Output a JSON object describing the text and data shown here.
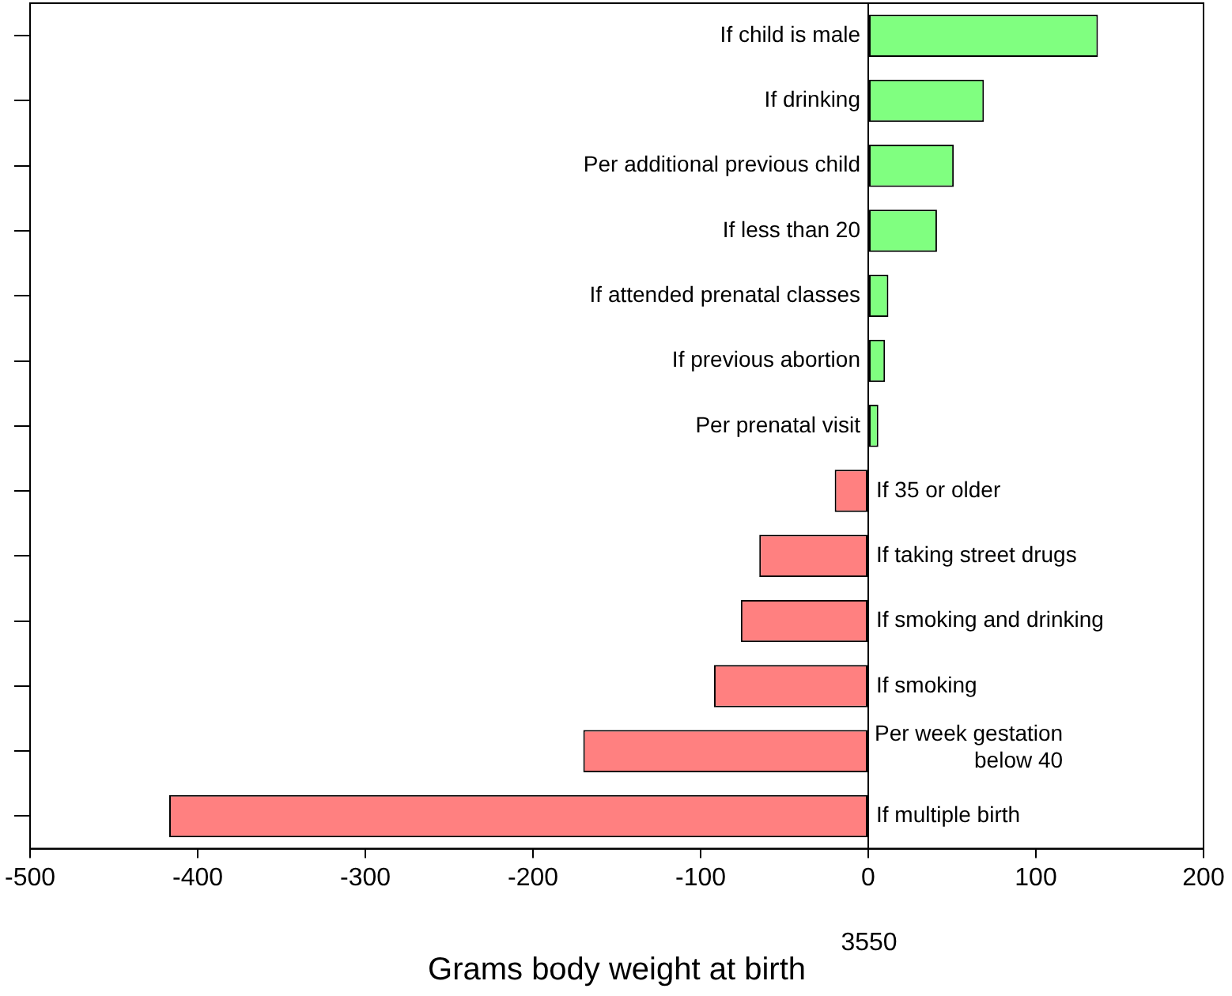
{
  "chart_data": {
    "type": "bar",
    "orientation": "horizontal",
    "xlabel": "Grams body weight at birth",
    "categories": [
      "If child is male",
      "If drinking",
      "Per additional previous child",
      "If less than 20",
      "If attended prenatal classes",
      "If previous abortion",
      "Per prenatal visit",
      "If 35 or older",
      "If taking street drugs",
      "If smoking and drinking",
      "If smoking",
      "Per week gestation\nbelow 40",
      "If multiple birth"
    ],
    "values": [
      137,
      69,
      51,
      41,
      12,
      10,
      6,
      -20,
      -65,
      -76,
      -92,
      -170,
      -417
    ],
    "colors": [
      "#80ff80",
      "#80ff80",
      "#80ff80",
      "#80ff80",
      "#80ff80",
      "#80ff80",
      "#80ff80",
      "#ff8080",
      "#ff8080",
      "#ff8080",
      "#ff8080",
      "#ff8080",
      "#ff8080"
    ],
    "xlim": [
      -500,
      200
    ],
    "xticks": [
      -500,
      -400,
      -300,
      -200,
      -100,
      0,
      100,
      200
    ],
    "annotations": [
      "3550"
    ],
    "grid": false,
    "legend": false
  }
}
